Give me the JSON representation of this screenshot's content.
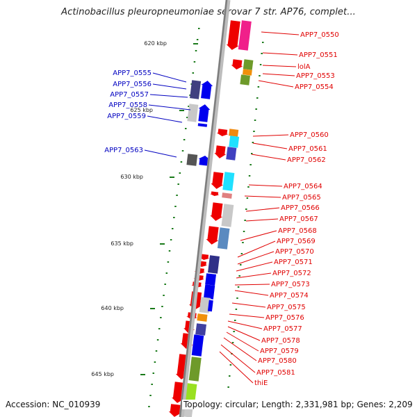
{
  "title": "Actinobacillus pleuropneumoniae serovar 7 str. AP76, complet...",
  "footer": {
    "accession": "Accession: NC_010939",
    "topology": "Topology: circular; Length: 2,331,981 bp; Genes: 2,209"
  },
  "colors": {
    "backbone": "#8a8a8a",
    "forward_label": "#e00000",
    "reverse_label": "#0000c0",
    "tick": "#1a7a1a"
  },
  "scale_ticks": [
    "620 kbp",
    "625 kbp",
    "630 kbp",
    "635 kbp",
    "640 kbp",
    "645 kbp"
  ],
  "left_labels": [
    "APP7_0555",
    "APP7_0556",
    "APP7_0557",
    "APP7_0558",
    "APP7_0559",
    "APP7_0563"
  ],
  "right_labels": [
    "APP7_0550",
    "APP7_0551",
    "lolA",
    "APP7_0553",
    "APP7_0554",
    "APP7_0560",
    "APP7_0561",
    "APP7_0562",
    "APP7_0564",
    "APP7_0565",
    "APP7_0566",
    "APP7_0567",
    "APP7_0568",
    "APP7_0569",
    "APP7_0570",
    "APP7_0571",
    "APP7_0572",
    "APP7_0573",
    "APP7_0574",
    "APP7_0575",
    "APP7_0576",
    "APP7_0577",
    "APP7_0578",
    "APP7_0579",
    "APP7_0580",
    "APP7_0581",
    "thiE"
  ]
}
